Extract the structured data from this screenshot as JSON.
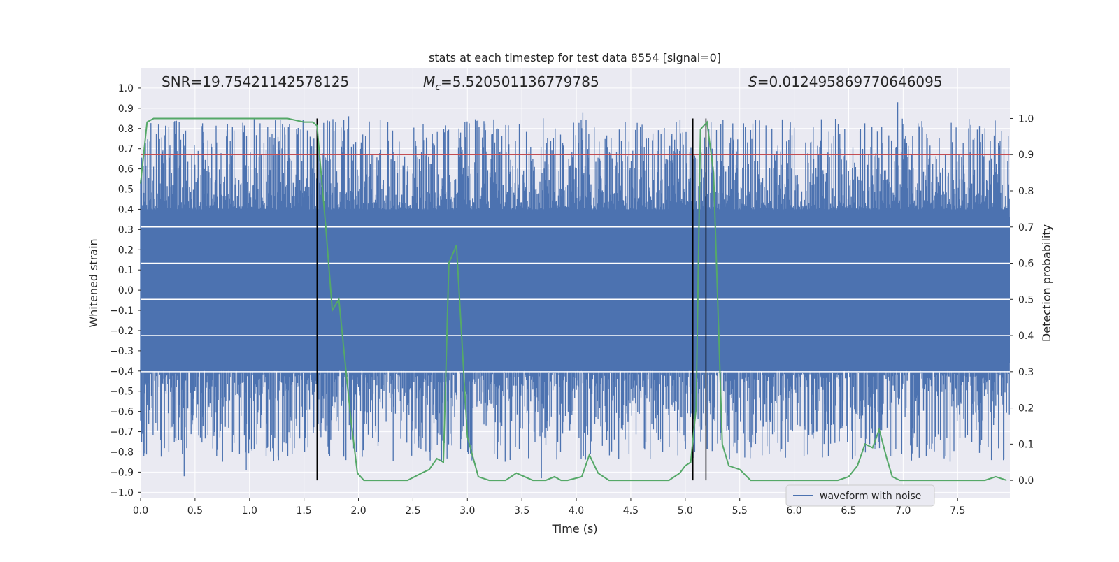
{
  "chart_data": {
    "type": "line",
    "title": "stats at each timestep for test data 8554 [signal=0]",
    "xlabel": "Time (s)",
    "ylabel": "Whitened strain",
    "ylabel_right": "Detection probability",
    "xlim": [
      0.0,
      7.98
    ],
    "ylim": [
      -1.03,
      1.1
    ],
    "ylim_right": [
      -0.05,
      1.14
    ],
    "xticks": [
      "0.0",
      "0.5",
      "1.0",
      "1.5",
      "2.0",
      "2.5",
      "3.0",
      "3.5",
      "4.0",
      "4.5",
      "5.0",
      "5.5",
      "6.0",
      "6.5",
      "7.0",
      "7.5"
    ],
    "xtick_values": [
      0,
      0.5,
      1,
      1.5,
      2,
      2.5,
      3,
      3.5,
      4,
      4.5,
      5,
      5.5,
      6,
      6.5,
      7,
      7.5
    ],
    "yticks": [
      "1.0",
      "0.9",
      "0.8",
      "0.7",
      "0.6",
      "0.5",
      "0.4",
      "0.3",
      "0.2",
      "0.1",
      "0.0",
      "−0.1",
      "−0.2",
      "−0.3",
      "−0.4",
      "−0.5",
      "−0.6",
      "−0.7",
      "−0.8",
      "−0.9",
      "−1.0"
    ],
    "ytick_values": [
      1.0,
      0.9,
      0.8,
      0.7,
      0.6,
      0.5,
      0.4,
      0.3,
      0.2,
      0.1,
      0.0,
      -0.1,
      -0.2,
      -0.3,
      -0.4,
      -0.5,
      -0.6,
      -0.7,
      -0.8,
      -0.9,
      -1.0
    ],
    "yticks_right": [
      "1.0",
      "0.9",
      "0.8",
      "0.7",
      "0.6",
      "0.5",
      "0.4",
      "0.3",
      "0.2",
      "0.1",
      "0.0"
    ],
    "ytick_right_values": [
      1.0,
      0.9,
      0.8,
      0.7,
      0.6,
      0.5,
      0.4,
      0.3,
      0.2,
      0.1,
      0.0
    ],
    "annotations": {
      "snr": "SNR=19.75421142578125",
      "mc_symbol": "M",
      "mc_sub": "c",
      "mc_value": "=5.520501136779785",
      "s_symbol": "S",
      "s_value": "=0.012495869770646095"
    },
    "threshold": 0.9,
    "grid": true,
    "legend_position": "lower-right",
    "legend": [
      "waveform with noise"
    ],
    "series": [
      {
        "name": "waveform with noise",
        "color": "#4c72b0",
        "axis": "left",
        "style": "dense noise, core ±0.35, spikes to ±0.93",
        "peak_marks": [
          {
            "x": 0.4,
            "y": -0.92
          },
          {
            "x": 0.97,
            "y": -0.89
          },
          {
            "x": 1.91,
            "y": 0.86
          },
          {
            "x": 3.68,
            "y": -0.93
          },
          {
            "x": 4.06,
            "y": 0.88
          },
          {
            "x": 6.95,
            "y": 0.93
          }
        ]
      },
      {
        "name": "",
        "color": "#55a868",
        "axis": "right",
        "x": [
          0.0,
          0.06,
          0.12,
          0.5,
          1.0,
          1.35,
          1.5,
          1.58,
          1.62,
          1.7,
          1.76,
          1.82,
          1.88,
          1.93,
          1.99,
          2.05,
          2.15,
          2.3,
          2.45,
          2.58,
          2.65,
          2.72,
          2.78,
          2.83,
          2.9,
          3.0,
          3.1,
          3.2,
          3.28,
          3.35,
          3.45,
          3.6,
          3.72,
          3.8,
          3.86,
          3.92,
          4.05,
          4.12,
          4.2,
          4.3,
          4.5,
          4.75,
          4.85,
          4.95,
          5.0,
          5.05,
          5.1,
          5.14,
          5.2,
          5.26,
          5.34,
          5.4,
          5.5,
          5.6,
          5.8,
          6.0,
          6.2,
          6.4,
          6.5,
          6.58,
          6.65,
          6.72,
          6.78,
          6.85,
          6.9,
          6.97,
          7.05,
          7.2,
          7.4,
          7.6,
          7.75,
          7.85,
          7.95
        ],
        "y": [
          0.82,
          0.99,
          1.0,
          1.0,
          1.0,
          1.0,
          0.99,
          0.99,
          0.98,
          0.7,
          0.47,
          0.5,
          0.32,
          0.17,
          0.02,
          0.0,
          0.0,
          0.0,
          0.0,
          0.02,
          0.03,
          0.06,
          0.05,
          0.6,
          0.65,
          0.12,
          0.01,
          0.0,
          0.0,
          0.0,
          0.02,
          0.0,
          0.0,
          0.01,
          0.0,
          0.0,
          0.01,
          0.07,
          0.02,
          0.0,
          0.0,
          0.0,
          0.0,
          0.02,
          0.04,
          0.05,
          0.2,
          0.97,
          0.99,
          0.85,
          0.1,
          0.04,
          0.03,
          0.0,
          0.0,
          0.0,
          0.0,
          0.0,
          0.01,
          0.04,
          0.1,
          0.09,
          0.14,
          0.06,
          0.01,
          0.0,
          0.0,
          0.0,
          0.0,
          0.0,
          0.0,
          0.01,
          0.0
        ]
      }
    ],
    "vertical_markers": [
      1.62,
      5.07,
      5.19
    ],
    "bands_right": [
      0.7,
      0.6,
      0.5,
      0.4,
      0.3
    ]
  }
}
